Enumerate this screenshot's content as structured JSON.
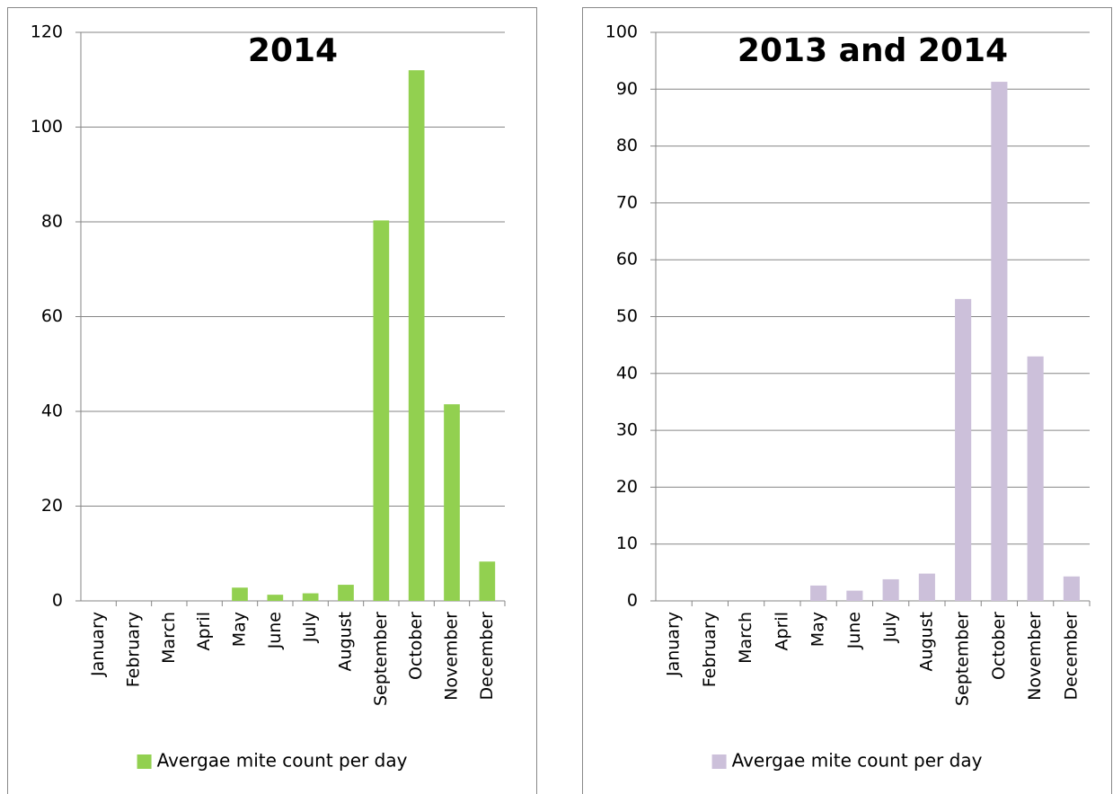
{
  "chart_data": [
    {
      "type": "bar",
      "title": "2014",
      "categories": [
        "January",
        "February",
        "March",
        "April",
        "May",
        "June",
        "July",
        "August",
        "September",
        "October",
        "November",
        "December"
      ],
      "series": [
        {
          "name": "Avergae mite count per day",
          "color": "#92d050",
          "values": [
            0,
            0,
            0,
            0,
            2.8,
            1.3,
            1.6,
            3.4,
            80.3,
            112,
            41.5,
            8.3
          ]
        }
      ],
      "ylim": [
        0,
        120
      ],
      "yticks": [
        0,
        20,
        40,
        60,
        80,
        100,
        120
      ],
      "grid": true,
      "legend": "bottom"
    },
    {
      "type": "bar",
      "title": "2013 and 2014",
      "categories": [
        "January",
        "February",
        "March",
        "April",
        "May",
        "June",
        "July",
        "August",
        "September",
        "October",
        "November",
        "December"
      ],
      "series": [
        {
          "name": "Avergae mite count per day",
          "color": "#ccc0da",
          "values": [
            0,
            0,
            0,
            0,
            2.7,
            1.8,
            3.8,
            4.8,
            53.1,
            91.3,
            43,
            4.3
          ]
        }
      ],
      "ylim": [
        0,
        100
      ],
      "yticks": [
        0,
        10,
        20,
        30,
        40,
        50,
        60,
        70,
        80,
        90,
        100
      ],
      "grid": true,
      "legend": "bottom"
    }
  ]
}
